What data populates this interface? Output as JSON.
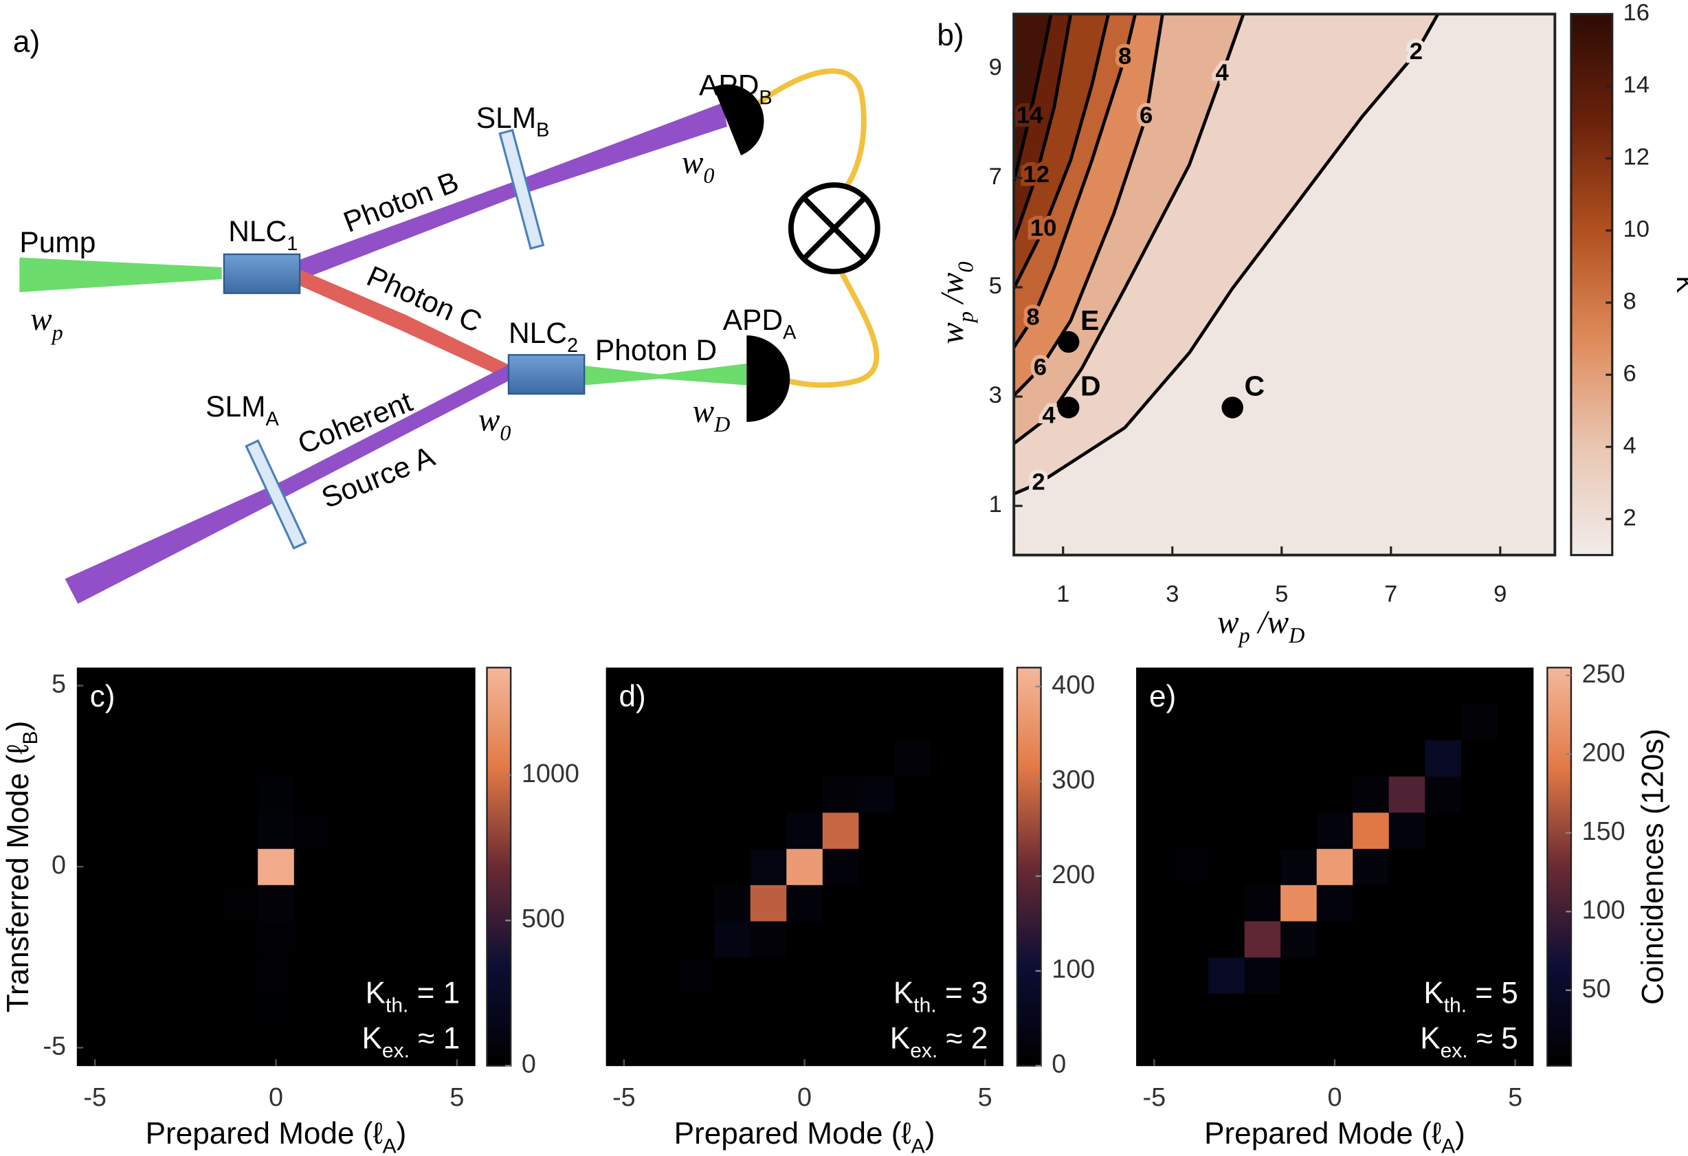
{
  "diagram": {
    "title": "a)",
    "labels": [
      [
        "Pump"
      ],
      [
        "w",
        "p"
      ],
      [
        "NLC",
        "1"
      ],
      [
        "Photon B"
      ],
      [
        "SLM",
        "B"
      ],
      [
        "APD",
        "B"
      ],
      [
        "w",
        "0"
      ],
      [
        "Photon C"
      ],
      [
        "NLC",
        "2"
      ],
      [
        "Photon D"
      ],
      [
        "APD",
        "A"
      ],
      [
        "w",
        "D"
      ],
      [
        "w",
        "0"
      ],
      [
        "SLM",
        "A"
      ],
      [
        "Coherent"
      ],
      [
        "Source A"
      ]
    ]
  },
  "chart_data": [
    {
      "type": "contour",
      "title": "b)",
      "xlabel": [
        "w",
        "p",
        " /w",
        "D"
      ],
      "ylabel": [
        "w",
        "p",
        " /w",
        "0"
      ],
      "xlim": [
        0.1,
        10
      ],
      "ylim": [
        0.1,
        10
      ],
      "xticks": [
        1,
        3,
        5,
        7,
        9
      ],
      "yticks": [
        1,
        3,
        5,
        7,
        9
      ],
      "contours": [
        {
          "level": 2,
          "x": [
            0.1,
            0.55,
            2.13,
            3.31,
            4.1,
            5.29,
            6.47,
            7.46,
            7.86
          ],
          "y": [
            1.22,
            1.41,
            2.43,
            3.8,
            4.98,
            6.55,
            8.12,
            9.29,
            10
          ]
        },
        {
          "level": 4,
          "x": [
            0.1,
            0.74,
            1.34,
            2.13,
            3.31,
            3.91,
            4.3
          ],
          "y": [
            2.14,
            2.63,
            3.51,
            4.98,
            7.24,
            8.9,
            10
          ]
        },
        {
          "level": 6,
          "x": [
            0.1,
            0.58,
            1.14,
            1.93,
            2.52,
            2.82
          ],
          "y": [
            3.02,
            3.51,
            4.39,
            6.35,
            8.12,
            10
          ]
        },
        {
          "level": 8,
          "x": [
            0.1,
            0.45,
            0.84,
            1.53,
            2.13,
            2.32
          ],
          "y": [
            3.9,
            4.43,
            5.37,
            7.33,
            9.2,
            10
          ]
        },
        {
          "level": 10,
          "x": [
            0.1,
            0.64,
            1.14,
            1.53,
            1.83
          ],
          "y": [
            4.98,
            6.06,
            7.33,
            8.71,
            10
          ]
        },
        {
          "level": 12,
          "x": [
            0.1,
            0.51,
            0.84,
            1.14
          ],
          "y": [
            5.86,
            7.04,
            8.31,
            10
          ]
        },
        {
          "level": 14,
          "x": [
            0.1,
            0.39,
            0.64,
            0.78
          ],
          "y": [
            6.94,
            8.12,
            9.29,
            10
          ]
        }
      ],
      "points": {
        "labels": [
          "E",
          "D",
          "C"
        ],
        "x": [
          1.1,
          1.1,
          4.1
        ],
        "y": [
          4,
          2.8,
          2.8
        ]
      },
      "colorbar": {
        "label": "K",
        "clim": [
          1,
          16
        ],
        "ticks": [
          2,
          4,
          6,
          8,
          10,
          12,
          14,
          16
        ]
      },
      "colormap": [
        "#f1ecea",
        "#e9c6b2",
        "#df8a5a",
        "#b2501f",
        "#6a220b",
        "#2e0b04"
      ]
    },
    {
      "type": "heatmap",
      "title": "c)",
      "x": [
        -5,
        -4,
        -3,
        -2,
        -1,
        0,
        1,
        2,
        3,
        4,
        5
      ],
      "y": [
        -5,
        -4,
        -3,
        -2,
        -1,
        0,
        1,
        2,
        3,
        4,
        5
      ],
      "z": [
        [
          0,
          0,
          0,
          0,
          0,
          0,
          0,
          0,
          0,
          0,
          0
        ],
        [
          0,
          0,
          0,
          0,
          0,
          10,
          0,
          0,
          0,
          0,
          0
        ],
        [
          0,
          0,
          0,
          0,
          0,
          20,
          0,
          0,
          0,
          0,
          0
        ],
        [
          0,
          0,
          0,
          0,
          0,
          30,
          0,
          0,
          0,
          0,
          0
        ],
        [
          0,
          0,
          0,
          0,
          25,
          50,
          0,
          0,
          0,
          0,
          0
        ],
        [
          0,
          0,
          0,
          0,
          0,
          1300,
          0,
          0,
          0,
          0,
          0
        ],
        [
          0,
          0,
          0,
          0,
          0,
          60,
          30,
          0,
          0,
          0,
          0
        ],
        [
          0,
          0,
          0,
          0,
          0,
          40,
          0,
          0,
          0,
          0,
          0
        ],
        [
          0,
          0,
          0,
          0,
          0,
          0,
          0,
          0,
          0,
          0,
          0
        ],
        [
          0,
          0,
          0,
          0,
          0,
          0,
          0,
          0,
          0,
          0,
          0
        ],
        [
          0,
          0,
          0,
          0,
          0,
          0,
          0,
          0,
          0,
          0,
          0
        ]
      ],
      "xlim": [
        -5.5,
        5.5
      ],
      "ylim": [
        -5.5,
        5.5
      ],
      "xticks": [
        -5,
        0,
        5
      ],
      "yticks": [
        -5,
        0,
        5
      ],
      "xlabel": [
        "Prepared Mode (ℓ",
        "A",
        ")"
      ],
      "ylabel": [
        "Transferred Mode (ℓ",
        "B",
        ")"
      ],
      "annotations": [
        [
          "K",
          "th.",
          " = 1"
        ],
        [
          "K",
          "ex.",
          " ≈ 1"
        ]
      ],
      "colorbar": {
        "clim": [
          0,
          1370
        ],
        "ticks": [
          0,
          500,
          1000
        ]
      },
      "colormap": [
        "#000000",
        "#0c0e35",
        "#6b2a33",
        "#e37a46",
        "#f4b89c"
      ]
    },
    {
      "type": "heatmap",
      "title": "d)",
      "x": [
        -5,
        -4,
        -3,
        -2,
        -1,
        0,
        1,
        2,
        3,
        4,
        5
      ],
      "y": [
        -5,
        -4,
        -3,
        -2,
        -1,
        0,
        1,
        2,
        3,
        4,
        5
      ],
      "z": [
        [
          0,
          0,
          0,
          0,
          0,
          0,
          0,
          0,
          0,
          0,
          0
        ],
        [
          0,
          0,
          0,
          0,
          0,
          0,
          0,
          0,
          0,
          0,
          0
        ],
        [
          0,
          0,
          10,
          0,
          0,
          0,
          0,
          0,
          0,
          0,
          0
        ],
        [
          0,
          0,
          0,
          35,
          15,
          0,
          0,
          0,
          0,
          0,
          0
        ],
        [
          0,
          0,
          0,
          15,
          280,
          20,
          0,
          0,
          0,
          0,
          0
        ],
        [
          0,
          0,
          0,
          0,
          30,
          370,
          20,
          0,
          0,
          0,
          0
        ],
        [
          0,
          0,
          0,
          0,
          0,
          25,
          290,
          0,
          0,
          0,
          0
        ],
        [
          0,
          0,
          0,
          0,
          0,
          0,
          15,
          25,
          0,
          0,
          0
        ],
        [
          0,
          0,
          0,
          0,
          0,
          0,
          0,
          0,
          15,
          0,
          0
        ],
        [
          0,
          0,
          0,
          0,
          0,
          0,
          0,
          0,
          0,
          0,
          0
        ],
        [
          0,
          0,
          0,
          0,
          0,
          0,
          0,
          0,
          0,
          0,
          0
        ]
      ],
      "xlim": [
        -5.5,
        5.5
      ],
      "ylim": [
        -5.5,
        5.5
      ],
      "xticks": [
        -5,
        0,
        5
      ],
      "xlabel": [
        "Prepared Mode (ℓ",
        "A",
        ")"
      ],
      "annotations": [
        [
          "K",
          "th.",
          " = 3"
        ],
        [
          "K",
          "ex.",
          " ≈ 2"
        ]
      ],
      "colorbar": {
        "clim": [
          0,
          420
        ],
        "ticks": [
          0,
          100,
          200,
          300,
          400
        ]
      },
      "colormap": [
        "#000000",
        "#0c0e35",
        "#6b2a33",
        "#e37a46",
        "#f4b89c"
      ]
    },
    {
      "type": "heatmap",
      "title": "e)",
      "x": [
        -5,
        -4,
        -3,
        -2,
        -1,
        0,
        1,
        2,
        3,
        4,
        5
      ],
      "y": [
        -5,
        -4,
        -3,
        -2,
        -1,
        0,
        1,
        2,
        3,
        4,
        5
      ],
      "z": [
        [
          0,
          0,
          0,
          0,
          0,
          0,
          0,
          0,
          0,
          0,
          0
        ],
        [
          0,
          0,
          0,
          0,
          0,
          0,
          0,
          0,
          0,
          0,
          0
        ],
        [
          0,
          0,
          45,
          15,
          0,
          0,
          0,
          0,
          0,
          0,
          0
        ],
        [
          0,
          0,
          0,
          120,
          15,
          0,
          0,
          0,
          0,
          0,
          0
        ],
        [
          0,
          0,
          0,
          12,
          210,
          15,
          0,
          0,
          0,
          0,
          0
        ],
        [
          0,
          8,
          0,
          0,
          15,
          225,
          15,
          0,
          0,
          0,
          0
        ],
        [
          0,
          0,
          0,
          0,
          0,
          15,
          190,
          15,
          0,
          0,
          0
        ],
        [
          0,
          0,
          0,
          0,
          0,
          0,
          12,
          110,
          12,
          0,
          0
        ],
        [
          0,
          0,
          0,
          0,
          0,
          0,
          0,
          0,
          45,
          0,
          0
        ],
        [
          0,
          0,
          0,
          0,
          0,
          0,
          0,
          0,
          0,
          10,
          0
        ],
        [
          0,
          0,
          0,
          0,
          0,
          0,
          0,
          0,
          0,
          0,
          0
        ]
      ],
      "xlim": [
        -5.5,
        5.5
      ],
      "ylim": [
        -5.5,
        5.5
      ],
      "xticks": [
        -5,
        0,
        5
      ],
      "xlabel": [
        "Prepared Mode (ℓ",
        "A",
        ")"
      ],
      "annotations": [
        [
          "K",
          "th.",
          " = 5"
        ],
        [
          "K",
          "ex.",
          " ≈ 5"
        ]
      ],
      "colorbar": {
        "label": "Coincidences (120s)",
        "clim": [
          2,
          255
        ],
        "ticks": [
          50,
          100,
          150,
          200,
          250
        ]
      },
      "colormap": [
        "#000000",
        "#0c0e35",
        "#6b2a33",
        "#e37a46",
        "#f4b89c"
      ]
    }
  ]
}
